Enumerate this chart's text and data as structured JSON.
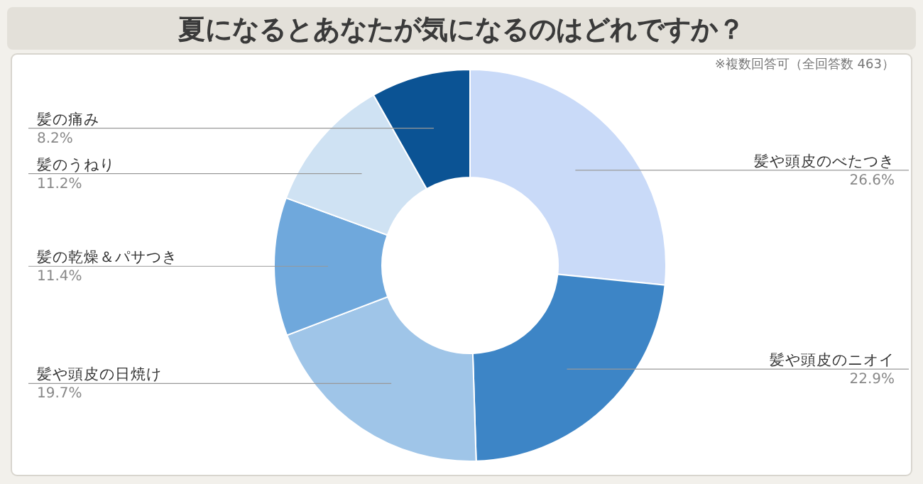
{
  "chart_data": {
    "type": "donut",
    "title": "夏になるとあなたが気になるのはどれですか？",
    "annotations": [
      "※複数回答可（全回答数 463）"
    ],
    "categories": [
      "髪や頭皮のべたつき",
      "髪や頭皮のニオイ",
      "髪や頭皮の日焼け",
      "髪の乾燥＆パサつき",
      "髪のうねり",
      "髪の痛み"
    ],
    "values": [
      26.6,
      22.9,
      19.7,
      11.4,
      11.2,
      8.2
    ],
    "value_labels": [
      "26.6%",
      "22.9%",
      "19.7%",
      "11.4%",
      "11.2%",
      "8.2%"
    ],
    "colors": [
      "#c9daf8",
      "#3d85c6",
      "#9fc5e8",
      "#6fa8dc",
      "#cfe2f3",
      "#0b5394"
    ]
  }
}
